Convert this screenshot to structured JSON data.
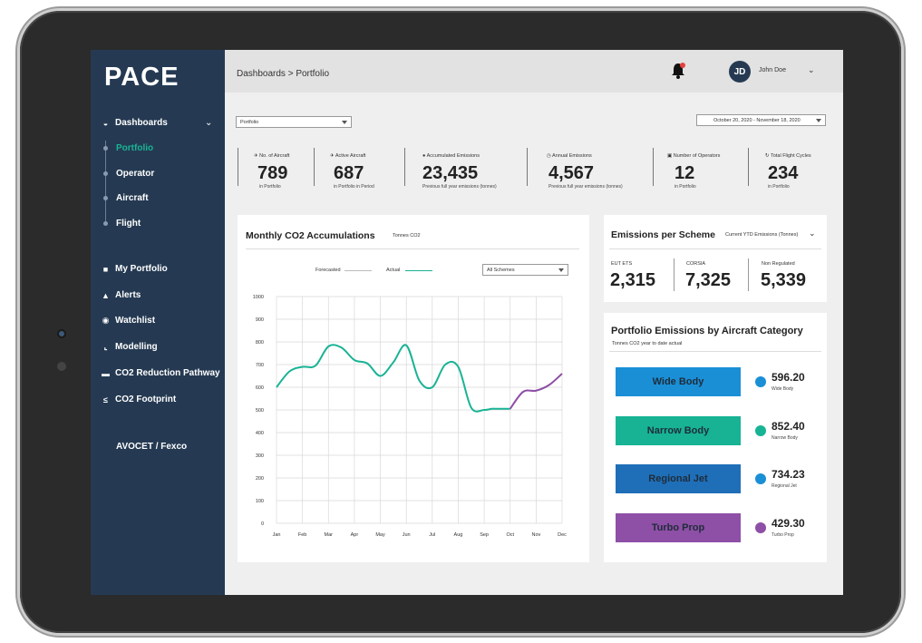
{
  "app": {
    "logo": "PACE",
    "breadcrumb": "Dashboards > Portfolio"
  },
  "user": {
    "initials": "JD",
    "name": "John Doe"
  },
  "sidebar": {
    "dashboards_label": "Dashboards",
    "sub_items": [
      {
        "label": "Portfolio",
        "active": true
      },
      {
        "label": "Operator",
        "active": false
      },
      {
        "label": "Aircraft",
        "active": false
      },
      {
        "label": "Flight",
        "active": false
      }
    ],
    "items": [
      {
        "label": "My Portfolio",
        "icon": "briefcase-icon"
      },
      {
        "label": "Alerts",
        "icon": "bell-icon"
      },
      {
        "label": "Watchlist",
        "icon": "eye-icon"
      },
      {
        "label": "Modelling",
        "icon": "chart-icon"
      },
      {
        "label": "CO2 Reduction Pathway",
        "icon": "pathway-icon"
      },
      {
        "label": "CO2 Footprint",
        "icon": "footprint-icon"
      }
    ],
    "org": "AVOCET / Fexco"
  },
  "filters": {
    "portfolio_select": "Portfolio",
    "date_range": "October 20, 2020 - November 18, 2020"
  },
  "kpis": [
    {
      "label": "No. of Aircraft",
      "value": "789",
      "sub": "in Portfolio"
    },
    {
      "label": "Active Aircraft",
      "value": "687",
      "sub": "in Portfolio in Period"
    },
    {
      "label": "Accumulated Emissions",
      "value": "23,435",
      "sub": "Previous full year emissions (tonnes)"
    },
    {
      "label": "Annual Emissions",
      "value": "4,567",
      "sub": "Previous full year emissions (tonnes)"
    },
    {
      "label": "Number of Operators",
      "value": "12",
      "sub": "in Portfolio"
    },
    {
      "label": "Total Flight Cycles",
      "value": "234",
      "sub": "in Portfolio"
    }
  ],
  "monthly": {
    "title": "Monthly CO2 Accumulations",
    "unit": "Tonnes CO2",
    "legend_forecast": "Forecasted",
    "legend_actual": "Actual",
    "scheme_select": "All Schemes"
  },
  "chart_data": {
    "type": "line",
    "categories": [
      "Jan",
      "Feb",
      "Mar",
      "Apr",
      "May",
      "Jun",
      "Jul",
      "Aug",
      "Sep",
      "Oct",
      "Nov",
      "Dec"
    ],
    "ylim": [
      0,
      1000
    ],
    "yticks": [
      0,
      100,
      200,
      300,
      400,
      500,
      600,
      700,
      800,
      900,
      1000
    ],
    "grid": true,
    "legend": "top-center",
    "series": [
      {
        "name": "Actual",
        "color": "#19b394",
        "x": [
          0,
          0.5,
          1,
          1.5,
          2,
          2.5,
          3,
          3.5,
          4,
          4.5,
          5,
          5.5,
          6,
          6.5,
          7,
          7.5,
          8,
          8.3,
          8.5,
          9
        ],
        "values": [
          600,
          670,
          690,
          695,
          780,
          775,
          720,
          705,
          650,
          710,
          785,
          630,
          600,
          700,
          690,
          510,
          500,
          505,
          505,
          505
        ]
      },
      {
        "name": "Forecasted",
        "color": "#8e4fa6",
        "x": [
          9,
          9.5,
          10,
          10.5,
          11
        ],
        "values": [
          505,
          580,
          585,
          610,
          660
        ]
      }
    ]
  },
  "scheme": {
    "title": "Emissions per Scheme",
    "subtitle": "Current YTD Emissions (Tonnes)",
    "items": [
      {
        "label": "EUT ETS",
        "value": "2,315"
      },
      {
        "label": "CORSIA",
        "value": "7,325"
      },
      {
        "label": "Non Regulated",
        "value": "5,339"
      }
    ]
  },
  "category": {
    "title": "Portfolio Emissions by Aircraft Category",
    "subtitle": "Tonnes CO2 year to date actual",
    "items": [
      {
        "label": "Wide Body",
        "value": "596.20",
        "sub": "Wide Body",
        "color": "#1a8fd6"
      },
      {
        "label": "Narrow Body",
        "value": "852.40",
        "sub": "Narrow Body",
        "color": "#17b394"
      },
      {
        "label": "Regional Jet",
        "value": "734.23",
        "sub": "Regional Jet",
        "color": "#1f6fb8"
      },
      {
        "label": "Turbo Prop",
        "value": "429.30",
        "sub": "Turbo Prop",
        "color": "#8e4fa6"
      }
    ]
  }
}
